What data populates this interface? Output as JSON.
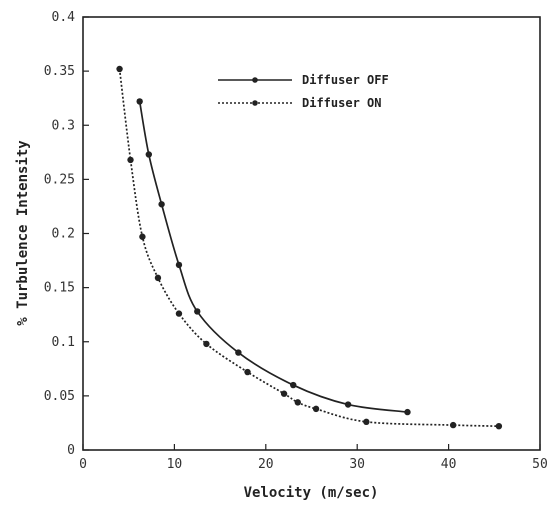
{
  "chart_data": {
    "type": "line",
    "title": "",
    "xlabel": "Velocity (m/sec)",
    "ylabel": "% Turbulence Intensity",
    "xlim": [
      0,
      50
    ],
    "ylim": [
      0,
      0.4
    ],
    "x_ticks": [
      0,
      10,
      20,
      30,
      40,
      50
    ],
    "x_tick_labels": [
      "0",
      "10",
      "20",
      "30",
      "40",
      "50"
    ],
    "y_ticks": [
      0,
      0.05,
      0.1,
      0.15,
      0.2,
      0.25,
      0.3,
      0.35,
      0.4
    ],
    "y_tick_labels": [
      "0",
      "0.05",
      "0.1",
      "0.15",
      "0.2",
      "0.25",
      "0.3",
      "0.35",
      "0.4"
    ],
    "grid": false,
    "legend_position": "top-right",
    "series": [
      {
        "name": "Diffuser OFF",
        "line_style": "solid",
        "color": "#222222",
        "points": [
          {
            "x": 6.2,
            "y": 0.322
          },
          {
            "x": 7.2,
            "y": 0.273
          },
          {
            "x": 8.6,
            "y": 0.227
          },
          {
            "x": 10.5,
            "y": 0.171
          },
          {
            "x": 12.5,
            "y": 0.128
          },
          {
            "x": 17.0,
            "y": 0.09
          },
          {
            "x": 23.0,
            "y": 0.06
          },
          {
            "x": 29.0,
            "y": 0.042
          },
          {
            "x": 35.5,
            "y": 0.035
          }
        ]
      },
      {
        "name": "Diffuser ON",
        "line_style": "dotted",
        "color": "#222222",
        "points": [
          {
            "x": 4.0,
            "y": 0.352
          },
          {
            "x": 5.2,
            "y": 0.268
          },
          {
            "x": 6.5,
            "y": 0.197
          },
          {
            "x": 8.2,
            "y": 0.159
          },
          {
            "x": 10.5,
            "y": 0.126
          },
          {
            "x": 13.5,
            "y": 0.098
          },
          {
            "x": 18.0,
            "y": 0.072
          },
          {
            "x": 22.0,
            "y": 0.052
          },
          {
            "x": 23.5,
            "y": 0.044
          },
          {
            "x": 25.5,
            "y": 0.038
          },
          {
            "x": 31.0,
            "y": 0.026
          },
          {
            "x": 40.5,
            "y": 0.023
          },
          {
            "x": 45.5,
            "y": 0.022
          }
        ]
      }
    ]
  }
}
